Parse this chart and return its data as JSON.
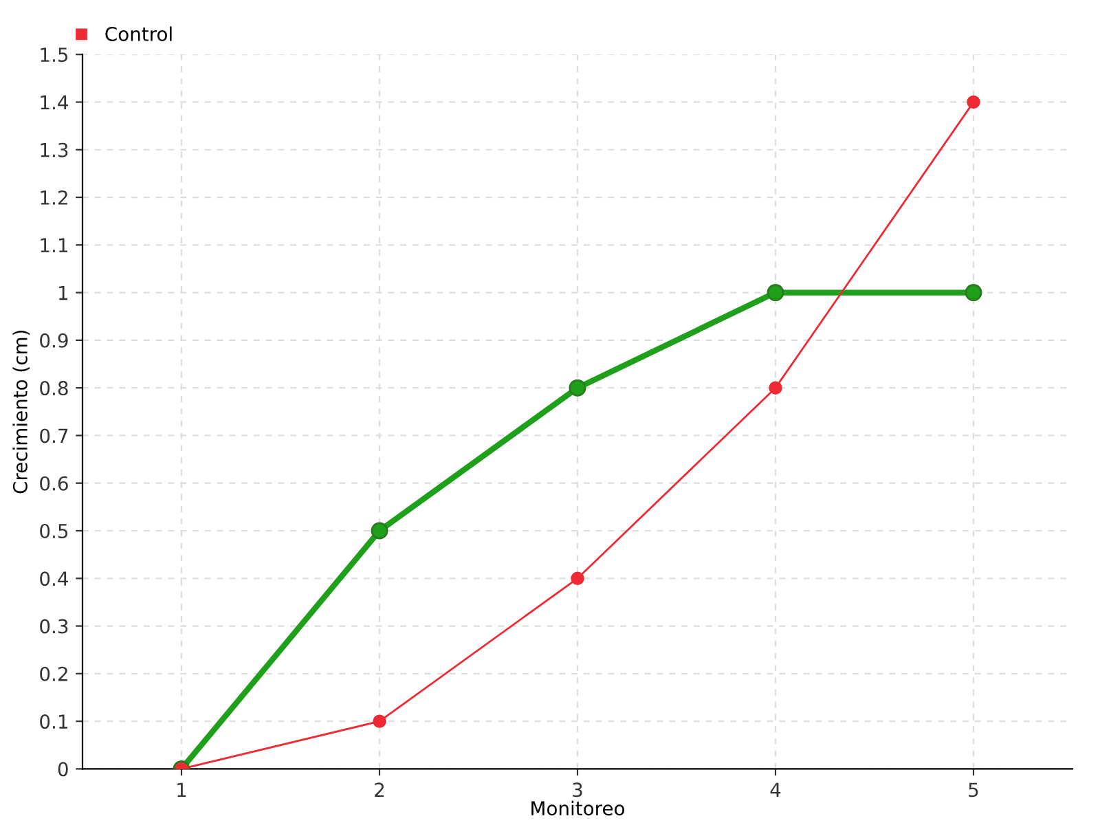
{
  "chart_data": {
    "type": "line",
    "xlabel": "Monitoreo",
    "ylabel": "Crecimiento (cm)",
    "x": [
      1,
      2,
      3,
      4,
      5
    ],
    "series": [
      {
        "color": "#1fa01a",
        "values": [
          0,
          0.5,
          0.8,
          1,
          1
        ]
      },
      {
        "name": "Control",
        "color": "#ee2a35",
        "values": [
          0,
          0.1,
          0.4,
          0.8,
          1.4
        ]
      }
    ],
    "xlim": [
      0.5,
      5.5
    ],
    "xticks": [
      1,
      2,
      3,
      4,
      5
    ],
    "ylim": [
      0,
      1.5
    ],
    "yticks": [
      0,
      0.1,
      0.2,
      0.3,
      0.4,
      0.5,
      0.6,
      0.7,
      0.8,
      0.9,
      1,
      1.1,
      1.2,
      1.3,
      1.4,
      1.5
    ],
    "grid": true,
    "legend": "top left",
    "marker": "circle",
    "line_style": "solid"
  }
}
